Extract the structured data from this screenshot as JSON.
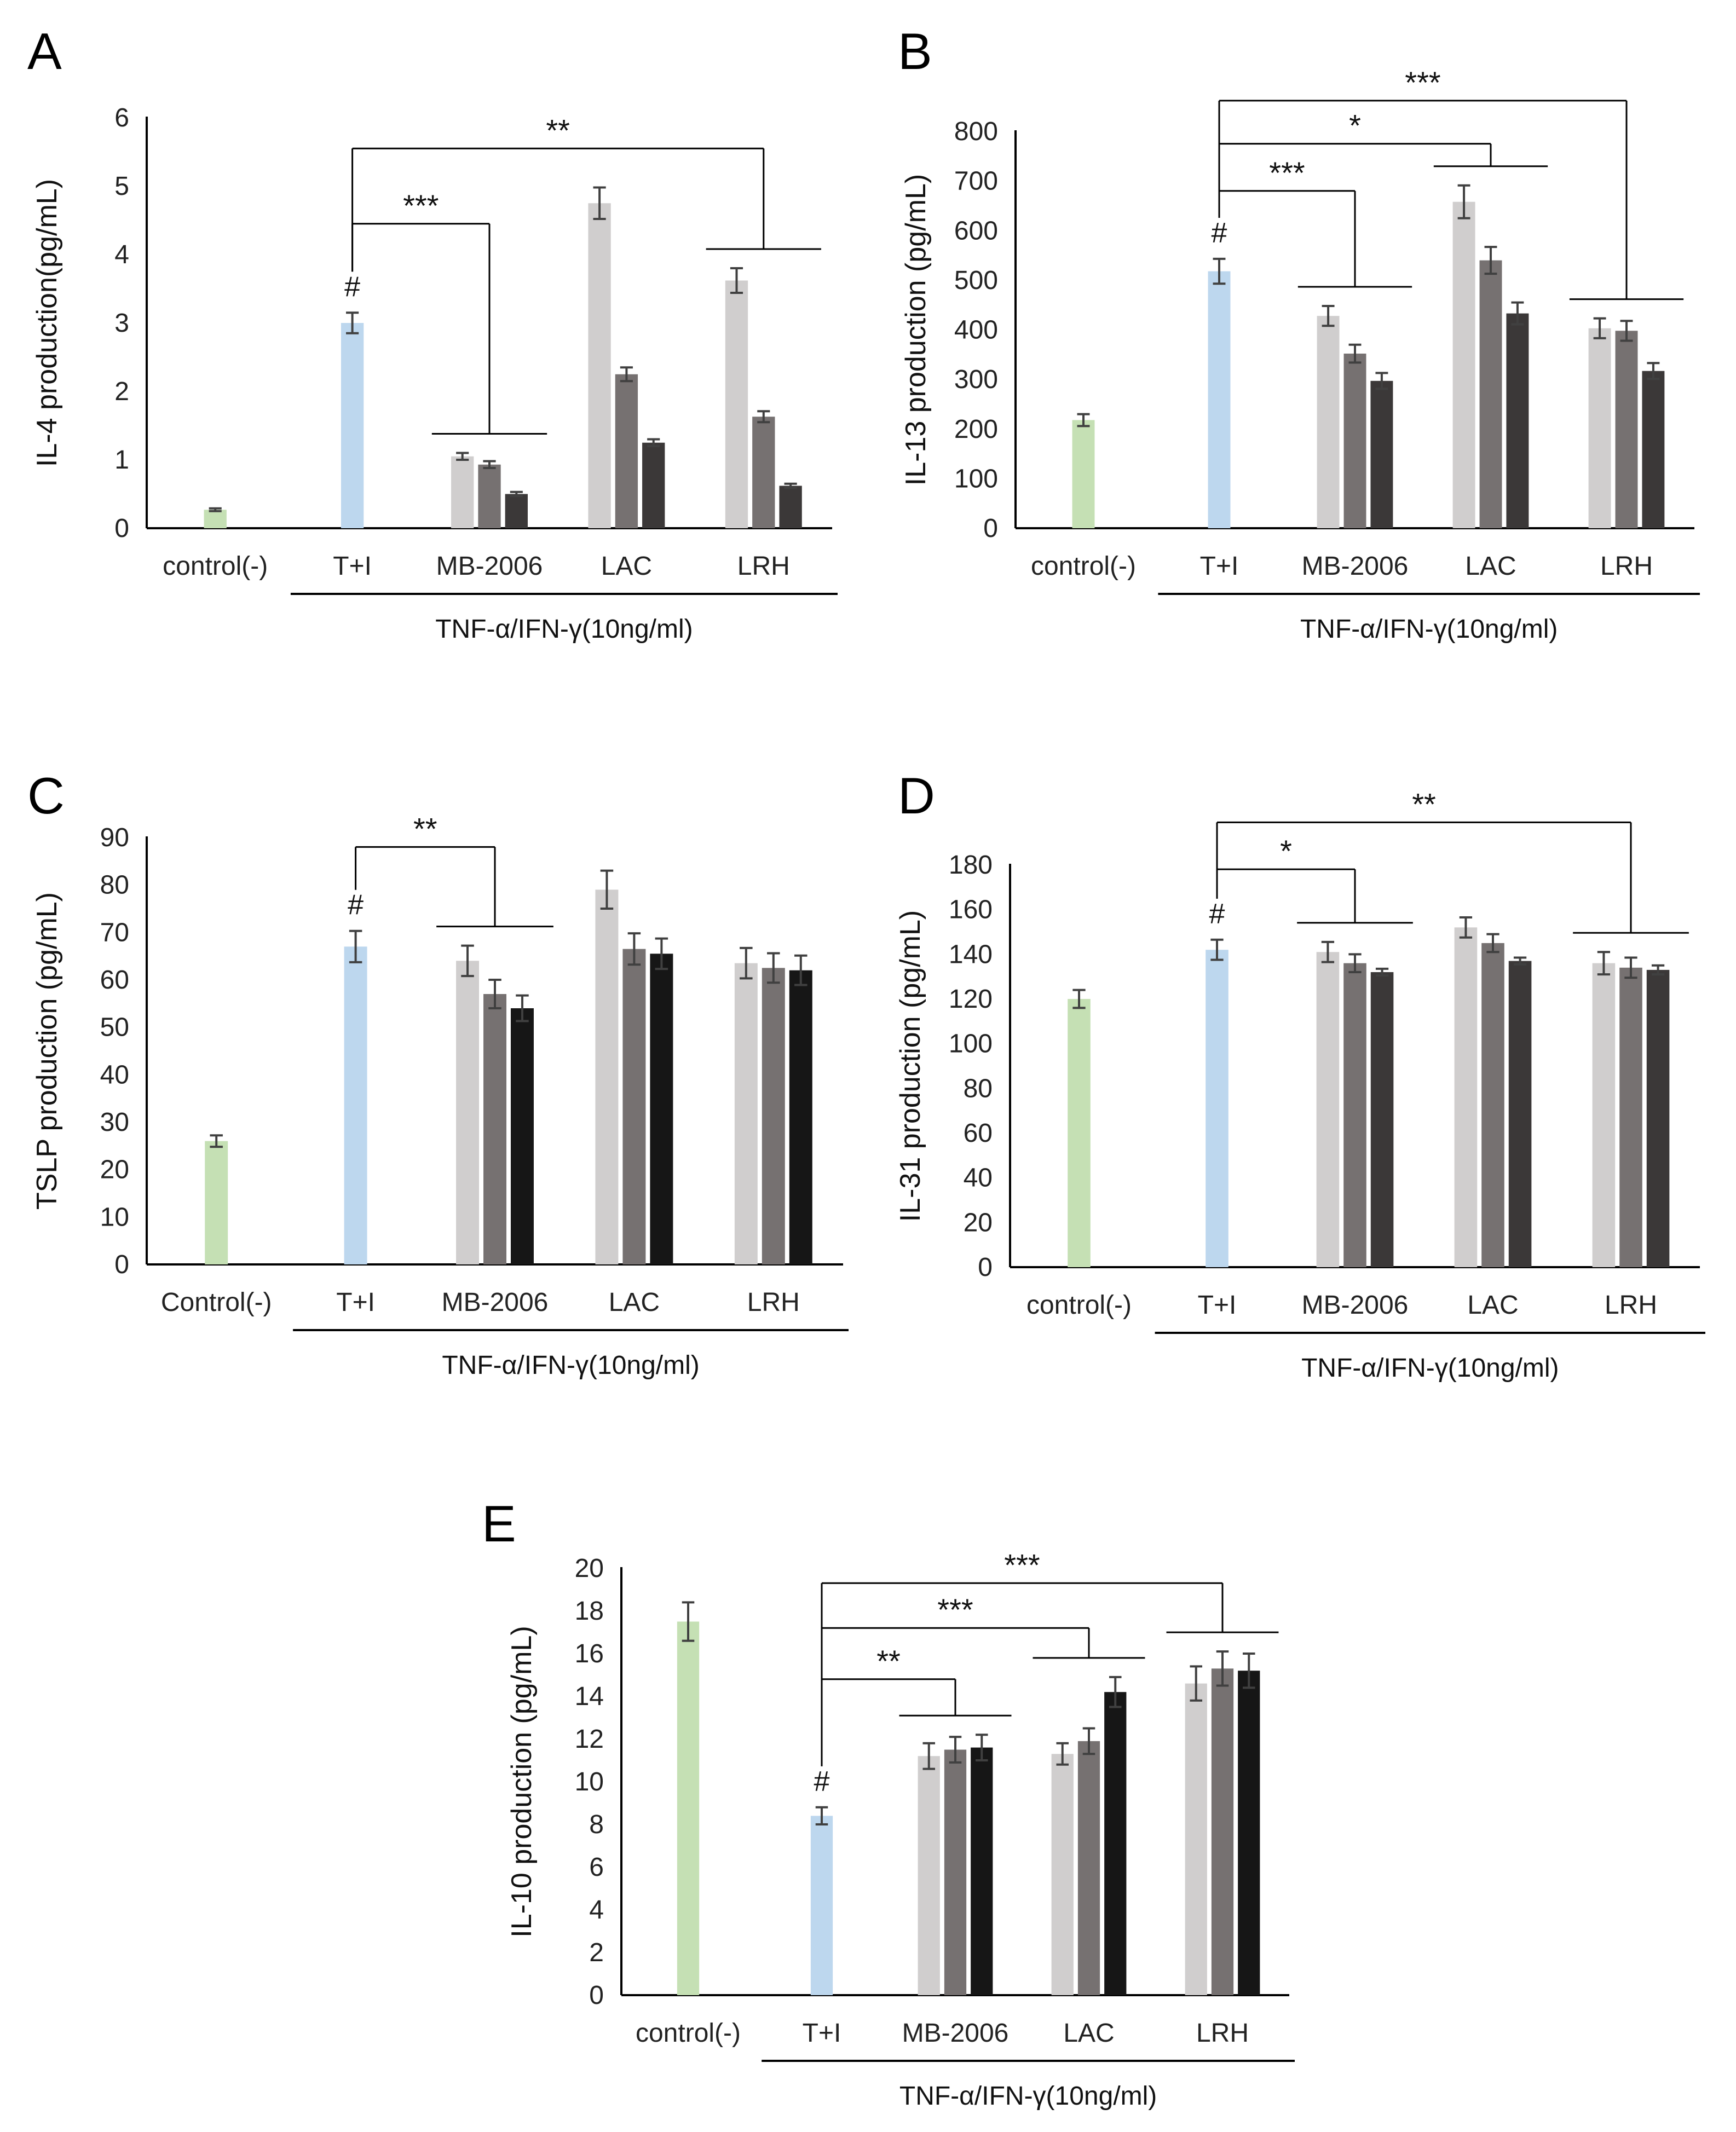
{
  "colors": {
    "control": "#c5e0b4",
    "ti": "#bdd7ee",
    "low": "#d0cece",
    "mid": "#767171",
    "high": "#3b3838",
    "high_c": "#161616",
    "axis": "#000000",
    "error": "#404040"
  },
  "chart_data": [
    {
      "panel": "A",
      "type": "bar",
      "ylabel": "IL-4 production(pg/mL)",
      "ylim": [
        0,
        6
      ],
      "yticks": [
        "0",
        "1",
        "2",
        "3",
        "4",
        "5",
        "6"
      ],
      "groups": [
        "control(-)",
        "T+I",
        "MB-2006",
        "LAC",
        "LRH"
      ],
      "bracket_label": "TNF-α/IFN-γ(10ng/ml)",
      "bars": [
        {
          "group": 0,
          "value": 0.27,
          "err": 0.02,
          "color": "control"
        },
        {
          "group": 1,
          "value": 3.0,
          "err": 0.15,
          "color": "ti"
        },
        {
          "group": 2,
          "value": 1.05,
          "err": 0.05,
          "color": "low"
        },
        {
          "group": 2,
          "value": 0.93,
          "err": 0.05,
          "color": "mid"
        },
        {
          "group": 2,
          "value": 0.5,
          "err": 0.03,
          "color": "high"
        },
        {
          "group": 3,
          "value": 4.75,
          "err": 0.23,
          "color": "low"
        },
        {
          "group": 3,
          "value": 2.25,
          "err": 0.1,
          "color": "mid"
        },
        {
          "group": 3,
          "value": 1.25,
          "err": 0.05,
          "color": "high"
        },
        {
          "group": 4,
          "value": 3.62,
          "err": 0.18,
          "color": "low"
        },
        {
          "group": 4,
          "value": 1.63,
          "err": 0.08,
          "color": "mid"
        },
        {
          "group": 4,
          "value": 0.62,
          "err": 0.03,
          "color": "high"
        }
      ],
      "hash": "#",
      "significance": [
        {
          "to": 2,
          "label": "***",
          "level": 4.45
        },
        {
          "to": 4,
          "label": "**",
          "level": 5.55
        }
      ]
    },
    {
      "panel": "B",
      "type": "bar",
      "ylabel": "IL-13  production (pg/mL)",
      "ylim": [
        0,
        800
      ],
      "yticks": [
        "0",
        "100",
        "200",
        "300",
        "400",
        "500",
        "600",
        "700",
        "800"
      ],
      "groups": [
        "control(-)",
        "T+I",
        "MB-2006",
        "LAC",
        "LRH"
      ],
      "bracket_label": "TNF-α/IFN-γ(10ng/ml)",
      "bars": [
        {
          "group": 0,
          "value": 218,
          "err": 12,
          "color": "control"
        },
        {
          "group": 1,
          "value": 518,
          "err": 25,
          "color": "ti"
        },
        {
          "group": 2,
          "value": 428,
          "err": 20,
          "color": "low"
        },
        {
          "group": 2,
          "value": 352,
          "err": 18,
          "color": "mid"
        },
        {
          "group": 2,
          "value": 297,
          "err": 16,
          "color": "high"
        },
        {
          "group": 3,
          "value": 658,
          "err": 33,
          "color": "low"
        },
        {
          "group": 3,
          "value": 540,
          "err": 27,
          "color": "mid"
        },
        {
          "group": 3,
          "value": 433,
          "err": 22,
          "color": "high"
        },
        {
          "group": 4,
          "value": 403,
          "err": 20,
          "color": "low"
        },
        {
          "group": 4,
          "value": 398,
          "err": 20,
          "color": "mid"
        },
        {
          "group": 4,
          "value": 317,
          "err": 16,
          "color": "high"
        }
      ],
      "hash": "#",
      "significance": [
        {
          "to": 2,
          "label": "***",
          "level": 680
        },
        {
          "to": 3,
          "label": "*",
          "level": 775
        },
        {
          "to": 4,
          "label": "***",
          "level": 862
        }
      ]
    },
    {
      "panel": "C",
      "type": "bar",
      "ylabel": "TSLP production (pg/mL)",
      "ylim": [
        0,
        90
      ],
      "yticks": [
        "0",
        "10",
        "20",
        "30",
        "40",
        "50",
        "60",
        "70",
        "80",
        "90"
      ],
      "groups": [
        "Control(-)",
        "T+I",
        "MB-2006",
        "LAC",
        "LRH"
      ],
      "bracket_label": "TNF-α/IFN-γ(10ng/ml)",
      "bars": [
        {
          "group": 0,
          "value": 26,
          "err": 1.2,
          "color": "control"
        },
        {
          "group": 1,
          "value": 67,
          "err": 3.3,
          "color": "ti"
        },
        {
          "group": 2,
          "value": 64,
          "err": 3.2,
          "color": "low"
        },
        {
          "group": 2,
          "value": 57,
          "err": 3.0,
          "color": "mid"
        },
        {
          "group": 2,
          "value": 54,
          "err": 2.7,
          "color": "high_c"
        },
        {
          "group": 3,
          "value": 79,
          "err": 4.0,
          "color": "low"
        },
        {
          "group": 3,
          "value": 66.5,
          "err": 3.3,
          "color": "mid"
        },
        {
          "group": 3,
          "value": 65.5,
          "err": 3.2,
          "color": "high_c"
        },
        {
          "group": 4,
          "value": 63.5,
          "err": 3.2,
          "color": "low"
        },
        {
          "group": 4,
          "value": 62.5,
          "err": 3.1,
          "color": "mid"
        },
        {
          "group": 4,
          "value": 62,
          "err": 3.1,
          "color": "high_c"
        }
      ],
      "hash": "#",
      "significance": [
        {
          "to": 2,
          "label": "**",
          "level": 88
        }
      ]
    },
    {
      "panel": "D",
      "type": "bar",
      "ylabel": "IL-31 production (pg/mL)",
      "ylim": [
        0,
        180
      ],
      "yticks": [
        "0",
        "20",
        "40",
        "60",
        "80",
        "100",
        "120",
        "140",
        "160",
        "180"
      ],
      "groups": [
        "control(-)",
        "T+I",
        "MB-2006",
        "LAC",
        "LRH"
      ],
      "bracket_label": "TNF-α/IFN-γ(10ng/ml)",
      "bars": [
        {
          "group": 0,
          "value": 120,
          "err": 4,
          "color": "control"
        },
        {
          "group": 1,
          "value": 142,
          "err": 4.5,
          "color": "ti"
        },
        {
          "group": 2,
          "value": 141,
          "err": 4.5,
          "color": "low"
        },
        {
          "group": 2,
          "value": 136,
          "err": 4,
          "color": "mid"
        },
        {
          "group": 2,
          "value": 132,
          "err": 1.5,
          "color": "high"
        },
        {
          "group": 3,
          "value": 152,
          "err": 4.5,
          "color": "low"
        },
        {
          "group": 3,
          "value": 145,
          "err": 4,
          "color": "mid"
        },
        {
          "group": 3,
          "value": 137,
          "err": 1.5,
          "color": "high"
        },
        {
          "group": 4,
          "value": 136,
          "err": 5,
          "color": "low"
        },
        {
          "group": 4,
          "value": 134,
          "err": 4.5,
          "color": "mid"
        },
        {
          "group": 4,
          "value": 133,
          "err": 2,
          "color": "high"
        }
      ],
      "hash": "#",
      "significance": [
        {
          "to": 2,
          "label": "*",
          "level": 178
        },
        {
          "to": 4,
          "label": "**",
          "level": 199
        }
      ]
    },
    {
      "panel": "E",
      "type": "bar",
      "ylabel": "IL-10 production (pg/mL)",
      "ylim": [
        0,
        20
      ],
      "yticks": [
        "0",
        "2",
        "4",
        "6",
        "8",
        "10",
        "12",
        "14",
        "16",
        "18",
        "20"
      ],
      "groups": [
        "control(-)",
        "T+I",
        "MB-2006",
        "LAC",
        "LRH"
      ],
      "bracket_label": "TNF-α/IFN-γ(10ng/ml)",
      "bars": [
        {
          "group": 0,
          "value": 17.5,
          "err": 0.9,
          "color": "control"
        },
        {
          "group": 1,
          "value": 8.4,
          "err": 0.4,
          "color": "ti"
        },
        {
          "group": 2,
          "value": 11.2,
          "err": 0.6,
          "color": "low"
        },
        {
          "group": 2,
          "value": 11.5,
          "err": 0.6,
          "color": "mid"
        },
        {
          "group": 2,
          "value": 11.6,
          "err": 0.6,
          "color": "high_c"
        },
        {
          "group": 3,
          "value": 11.3,
          "err": 0.5,
          "color": "low"
        },
        {
          "group": 3,
          "value": 11.9,
          "err": 0.6,
          "color": "mid"
        },
        {
          "group": 3,
          "value": 14.2,
          "err": 0.7,
          "color": "high_c"
        },
        {
          "group": 4,
          "value": 14.6,
          "err": 0.8,
          "color": "low"
        },
        {
          "group": 4,
          "value": 15.3,
          "err": 0.8,
          "color": "mid"
        },
        {
          "group": 4,
          "value": 15.2,
          "err": 0.8,
          "color": "high_c"
        }
      ],
      "hash": "#",
      "significance": [
        {
          "to": 2,
          "label": "**",
          "level": 14.8
        },
        {
          "to": 3,
          "label": "***",
          "level": 17.2
        },
        {
          "to": 4,
          "label": "***",
          "level": 19.3
        }
      ]
    }
  ]
}
